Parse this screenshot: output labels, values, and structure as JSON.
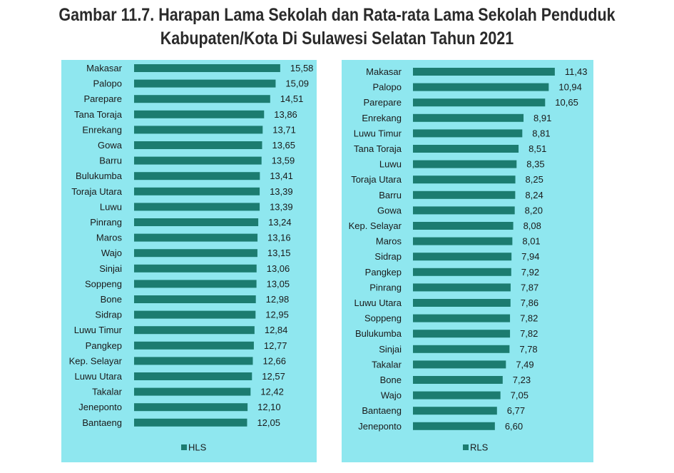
{
  "title_line1": "Gambar 11.7. Harapan Lama Sekolah dan Rata-rata Lama Sekolah Penduduk",
  "title_line2": "Kabupaten/Kota Di Sulawesi Selatan Tahun 2021",
  "colors": {
    "bar": "#1c7c70",
    "background": "#8fe7ef"
  },
  "chart_data": [
    {
      "type": "bar",
      "orientation": "horizontal",
      "legend": "HLS",
      "legend_position": "bottom",
      "xlim": [
        0,
        16
      ],
      "categories": [
        "Makasar",
        "Palopo",
        "Parepare",
        "Tana Toraja",
        "Enrekang",
        "Gowa",
        "Barru",
        "Bulukumba",
        "Toraja Utara",
        "Luwu",
        "Pinrang",
        "Maros",
        "Wajo",
        "Sinjai",
        "Soppeng",
        "Bone",
        "Sidrap",
        "Luwu Timur",
        "Pangkep",
        "Kep. Selayar",
        "Luwu Utara",
        "Takalar",
        "Jeneponto",
        "Bantaeng"
      ],
      "values": [
        15.58,
        15.09,
        14.51,
        13.86,
        13.71,
        13.65,
        13.59,
        13.41,
        13.39,
        13.39,
        13.24,
        13.16,
        13.15,
        13.06,
        13.05,
        12.98,
        12.95,
        12.84,
        12.77,
        12.66,
        12.57,
        12.42,
        12.1,
        12.05
      ],
      "value_labels": [
        "15,58",
        "15,09",
        "14,51",
        "13,86",
        "13,71",
        "13,65",
        "13,59",
        "13,41",
        "13,39",
        "13,39",
        "13,24",
        "13,16",
        "13,15",
        "13,06",
        "13,05",
        "12,98",
        "12,95",
        "12,84",
        "12,77",
        "12,66",
        "12,57",
        "12,42",
        "12,10",
        "12,05"
      ]
    },
    {
      "type": "bar",
      "orientation": "horizontal",
      "legend": "RLS",
      "legend_position": "bottom",
      "xlim": [
        0,
        12
      ],
      "categories": [
        "Makasar",
        "Palopo",
        "Parepare",
        "Enrekang",
        "Luwu Timur",
        "Tana Toraja",
        "Luwu",
        "Toraja Utara",
        "Barru",
        "Gowa",
        "Kep. Selayar",
        "Maros",
        "Sidrap",
        "Pangkep",
        "Pinrang",
        "Luwu Utara",
        "Soppeng",
        "Bulukumba",
        "Sinjai",
        "Takalar",
        "Bone",
        "Wajo",
        "Bantaeng",
        "Jeneponto"
      ],
      "values": [
        11.43,
        10.94,
        10.65,
        8.91,
        8.81,
        8.51,
        8.35,
        8.25,
        8.24,
        8.2,
        8.08,
        8.01,
        7.94,
        7.92,
        7.87,
        7.86,
        7.82,
        7.82,
        7.78,
        7.49,
        7.23,
        7.05,
        6.77,
        6.6
      ],
      "value_labels": [
        "11,43",
        "10,94",
        "10,65",
        "8,91",
        "8,81",
        "8,51",
        "8,35",
        "8,25",
        "8,24",
        "8,20",
        "8,08",
        "8,01",
        "7,94",
        "7,92",
        "7,87",
        "7,86",
        "7,82",
        "7,82",
        "7,78",
        "7,49",
        "7,23",
        "7,05",
        "6,77",
        "6,60"
      ]
    }
  ]
}
